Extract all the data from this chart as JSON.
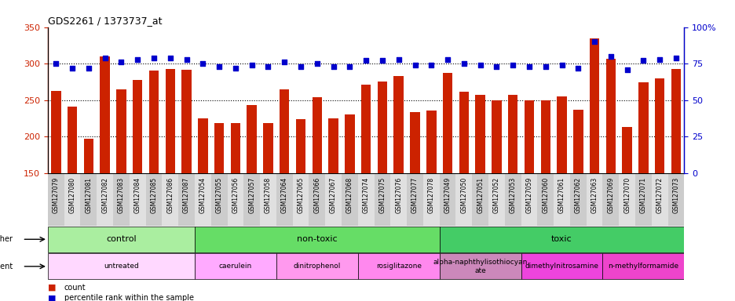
{
  "title": "GDS2261 / 1373737_at",
  "samples": [
    "GSM127079",
    "GSM127080",
    "GSM127081",
    "GSM127082",
    "GSM127083",
    "GSM127084",
    "GSM127085",
    "GSM127086",
    "GSM127087",
    "GSM127054",
    "GSM127055",
    "GSM127056",
    "GSM127057",
    "GSM127058",
    "GSM127064",
    "GSM127065",
    "GSM127066",
    "GSM127067",
    "GSM127068",
    "GSM127074",
    "GSM127075",
    "GSM127076",
    "GSM127077",
    "GSM127078",
    "GSM127049",
    "GSM127050",
    "GSM127051",
    "GSM127052",
    "GSM127053",
    "GSM127059",
    "GSM127060",
    "GSM127061",
    "GSM127062",
    "GSM127063",
    "GSM127069",
    "GSM127070",
    "GSM127071",
    "GSM127072",
    "GSM127073"
  ],
  "counts": [
    263,
    241,
    197,
    310,
    265,
    278,
    291,
    293,
    292,
    225,
    219,
    218,
    243,
    219,
    265,
    224,
    254,
    225,
    230,
    271,
    275,
    283,
    234,
    236,
    287,
    261,
    257,
    250,
    257,
    250,
    250,
    255,
    237,
    334,
    307,
    213,
    274,
    280,
    293
  ],
  "percentile_ranks": [
    75,
    72,
    72,
    79,
    76,
    78,
    79,
    79,
    78,
    75,
    73,
    72,
    74,
    73,
    76,
    73,
    75,
    73,
    73,
    77,
    77,
    78,
    74,
    74,
    78,
    75,
    74,
    73,
    74,
    73,
    73,
    74,
    72,
    90,
    80,
    71,
    77,
    78,
    79
  ],
  "bar_color": "#CC2200",
  "dot_color": "#0000CC",
  "ylim_left": [
    150,
    350
  ],
  "ylim_right": [
    0,
    100
  ],
  "yticks_left": [
    150,
    200,
    250,
    300,
    350
  ],
  "yticks_right": [
    0,
    25,
    50,
    75,
    100
  ],
  "grid_values": [
    200,
    250,
    300
  ],
  "groups_other": [
    {
      "label": "control",
      "start": 0,
      "end": 8,
      "color": "#AAEEA0"
    },
    {
      "label": "non-toxic",
      "start": 9,
      "end": 23,
      "color": "#66DD66"
    },
    {
      "label": "toxic",
      "start": 24,
      "end": 38,
      "color": "#44CC66"
    }
  ],
  "groups_agent": [
    {
      "label": "untreated",
      "start": 0,
      "end": 8,
      "color": "#FFD8FF"
    },
    {
      "label": "caerulein",
      "start": 9,
      "end": 13,
      "color": "#FFAAFF"
    },
    {
      "label": "dinitrophenol",
      "start": 14,
      "end": 18,
      "color": "#FF99EE"
    },
    {
      "label": "rosiglitazone",
      "start": 19,
      "end": 23,
      "color": "#FF88EE"
    },
    {
      "label": "alpha-naphthylisothiocyan\nate",
      "start": 24,
      "end": 28,
      "color": "#CC88BB"
    },
    {
      "label": "dimethylnitrosamine",
      "start": 29,
      "end": 33,
      "color": "#EE44DD"
    },
    {
      "label": "n-methylformamide",
      "start": 34,
      "end": 38,
      "color": "#EE44CC"
    }
  ]
}
